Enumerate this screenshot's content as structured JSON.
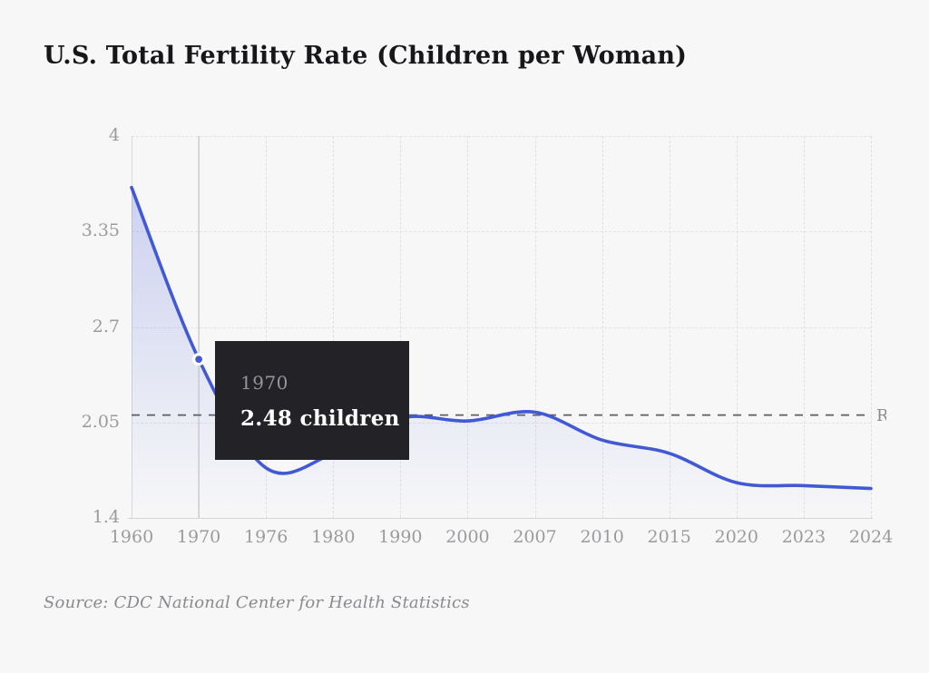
{
  "page": {
    "background": "#f7f7f8"
  },
  "header": {
    "title": "U.S. Total Fertility Rate (Children per Woman)"
  },
  "chart_data": {
    "type": "line",
    "title": "U.S. Total Fertility Rate (Children per Woman)",
    "categories": [
      "1960",
      "1970",
      "1976",
      "1980",
      "1990",
      "2000",
      "2007",
      "2010",
      "2015",
      "2020",
      "2023",
      "2024"
    ],
    "values": [
      3.65,
      2.48,
      1.74,
      1.84,
      2.08,
      2.06,
      2.12,
      1.93,
      1.84,
      1.64,
      1.62,
      1.6
    ],
    "ylim": [
      1.4,
      4
    ],
    "yticks": [
      4,
      3.35,
      2.7,
      2.05,
      1.4
    ],
    "ytick_labels": [
      "4",
      "3.35",
      "2.7",
      "2.05",
      "1.4"
    ],
    "grid": true,
    "legend": "none",
    "line_color": "#4259d6",
    "fill_color": "#5d70da",
    "reference_line": {
      "value": 2.1,
      "label": "R",
      "style": "dashed",
      "color": "#5f5f63"
    },
    "highlight": {
      "category": "1970",
      "value": 2.48
    }
  },
  "tooltip": {
    "year": "1970",
    "value_text": "2.48 children",
    "background": "#232327"
  },
  "footer": {
    "source": "Source: CDC National Center for Health Statistics"
  }
}
